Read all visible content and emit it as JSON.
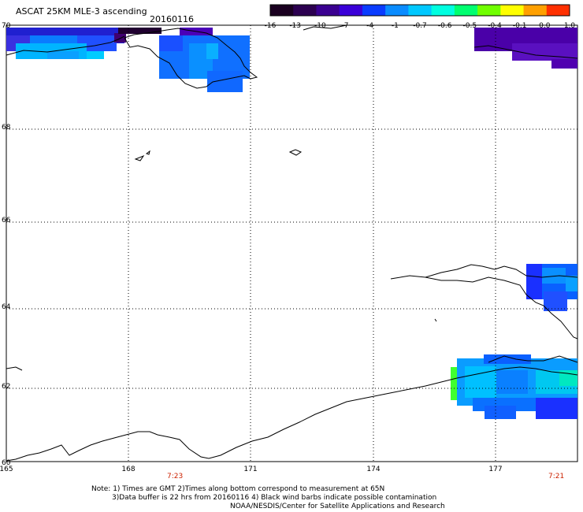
{
  "title": "ASCAT 25KM MLE-3 ascending",
  "date": "20160116",
  "colorbar": {
    "labels": [
      "-16",
      "-13",
      "-10",
      "-7",
      "-4",
      "-1",
      "-0.7",
      "-0.6",
      "-0.5",
      "-0.4",
      "-0.1",
      "0.0",
      "1.0"
    ],
    "colors": [
      "#1a0020",
      "#2c0050",
      "#3a0090",
      "#3a00d8",
      "#0a3cff",
      "#0a8cff",
      "#00c8ff",
      "#00ffe0",
      "#00ff70",
      "#70ff00",
      "#ffff00",
      "#ffa000",
      "#ff3000"
    ]
  },
  "lat_labels": [
    "70",
    "68",
    "66",
    "64",
    "62",
    "60"
  ],
  "lon_labels": [
    "165",
    "168",
    "171",
    "174",
    "177"
  ],
  "time_labels": {
    "left": "7:23",
    "right": "7:21"
  },
  "notes": [
    "Note: 1) Times are GMT 2)Times along bottom correspond to measurement at 65N",
    "3)Data buffer is 22 hrs from 20160116 4) Black wind barbs indicate possible contamination",
    "NOAA/NESDIS/Center for Satellite Applications and Research"
  ]
}
